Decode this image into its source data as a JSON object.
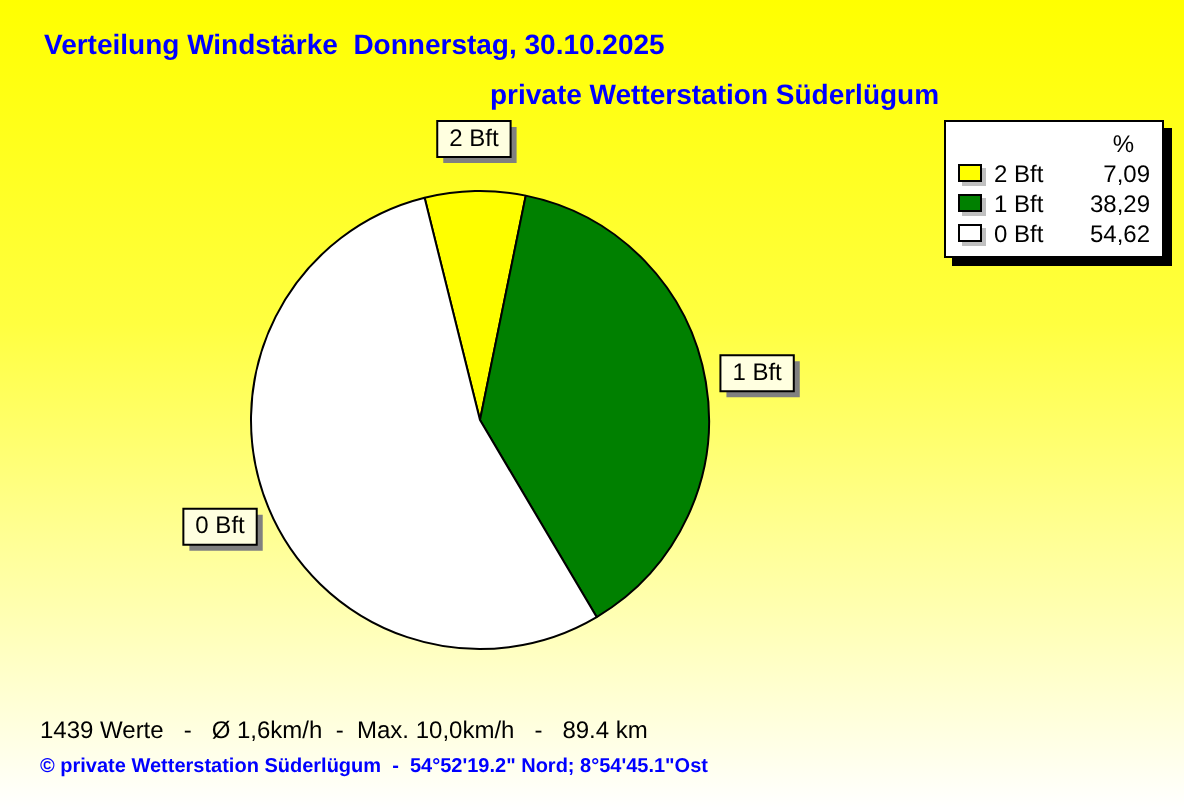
{
  "chart_data": {
    "type": "pie",
    "title": "Verteilung Windstärke  Donnerstag, 30.10.2025",
    "subtitle": "private Wetterstation Süderlügum",
    "categories": [
      "2 Bft",
      "1 Bft",
      "0 Bft"
    ],
    "values": [
      7.09,
      38.29,
      54.62
    ],
    "colors": [
      "#ffff00",
      "#008000",
      "#ffffff"
    ],
    "value_labels": [
      "7,09",
      "38,29",
      "54,62"
    ],
    "legend": "top right",
    "legend_title": "%",
    "annotations": [
      "1439 Werte   -   Ø 1,6km/h  -  Max. 10,0km/h   -   89.4 km",
      "© private Wetterstation Süderlügum  -  54°52'19.2\" Nord; 8°54'45.1\"Ost"
    ]
  }
}
